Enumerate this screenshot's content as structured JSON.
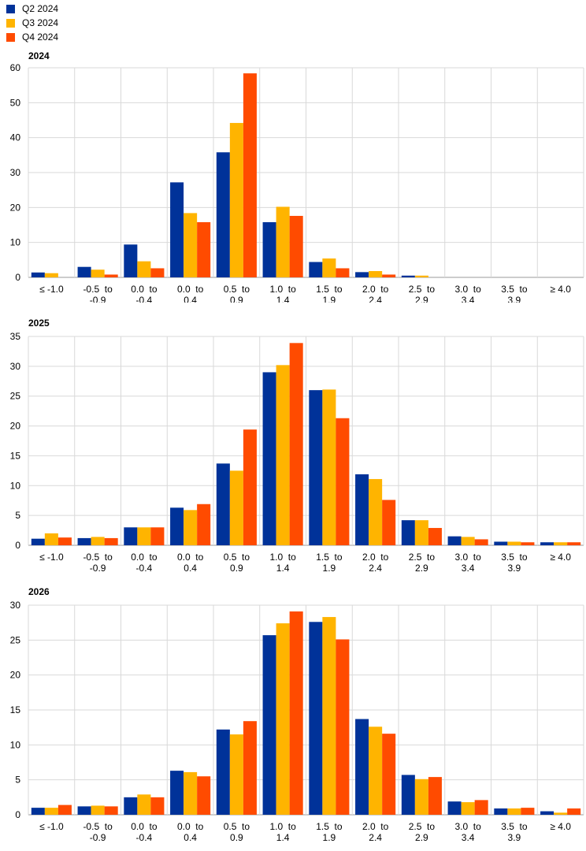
{
  "legend": [
    {
      "name": "Q2 2024",
      "color": "#003299"
    },
    {
      "name": "Q3 2024",
      "color": "#FFB400"
    },
    {
      "name": "Q4 2024",
      "color": "#FF4B00"
    }
  ],
  "chart_data": [
    {
      "type": "bar",
      "title": "2024",
      "categories": [
        [
          "≤ -1.0"
        ],
        [
          "-0.5  to",
          "-0.9"
        ],
        [
          "0.0  to",
          "-0.4"
        ],
        [
          "0.0  to",
          "0.4"
        ],
        [
          "0.5  to",
          "0.9"
        ],
        [
          "1.0  to",
          "1.4"
        ],
        [
          "1.5  to",
          "1.9"
        ],
        [
          "2.0  to",
          "2.4"
        ],
        [
          "2.5  to",
          "2.9"
        ],
        [
          "3.0  to",
          "3.4"
        ],
        [
          "3.5  to",
          "3.9"
        ],
        [
          "≥ 4.0"
        ]
      ],
      "ylim": [
        0,
        60
      ],
      "yticks": [
        0,
        10,
        20,
        30,
        40,
        50,
        60
      ],
      "grid": true,
      "series": [
        {
          "name": "Q2 2024",
          "values": [
            1.4,
            3.0,
            9.4,
            27.2,
            35.8,
            15.8,
            4.4,
            1.5,
            0.5,
            0,
            0,
            0
          ]
        },
        {
          "name": "Q3 2024",
          "values": [
            1.2,
            2.2,
            4.6,
            18.4,
            44.2,
            20.2,
            5.4,
            1.8,
            0.5,
            0,
            0,
            0
          ]
        },
        {
          "name": "Q4 2024",
          "values": [
            0,
            0.8,
            2.6,
            15.8,
            58.4,
            17.6,
            2.6,
            0.8,
            0,
            0,
            0,
            0
          ]
        }
      ]
    },
    {
      "type": "bar",
      "title": "2025",
      "categories": [
        [
          "≤ -1.0"
        ],
        [
          "-0.5  to",
          "-0.9"
        ],
        [
          "0.0  to",
          "-0.4"
        ],
        [
          "0.0  to",
          "0.4"
        ],
        [
          "0.5  to",
          "0.9"
        ],
        [
          "1.0  to",
          "1.4"
        ],
        [
          "1.5  to",
          "1.9"
        ],
        [
          "2.0  to",
          "2.4"
        ],
        [
          "2.5  to",
          "2.9"
        ],
        [
          "3.0  to",
          "3.4"
        ],
        [
          "3.5  to",
          "3.9"
        ],
        [
          "≥ 4.0"
        ]
      ],
      "ylim": [
        0,
        35
      ],
      "yticks": [
        0,
        5,
        10,
        15,
        20,
        25,
        30,
        35
      ],
      "grid": true,
      "series": [
        {
          "name": "Q2 2024",
          "values": [
            1.1,
            1.2,
            3.0,
            6.3,
            13.7,
            29.0,
            26.0,
            11.9,
            4.2,
            1.5,
            0.6,
            0.5
          ]
        },
        {
          "name": "Q3 2024",
          "values": [
            2.0,
            1.4,
            3.0,
            5.9,
            12.5,
            30.2,
            26.1,
            11.1,
            4.2,
            1.4,
            0.6,
            0.5
          ]
        },
        {
          "name": "Q4 2024",
          "values": [
            1.3,
            1.2,
            3.0,
            6.9,
            19.4,
            33.9,
            21.3,
            7.6,
            2.9,
            1.0,
            0.5,
            0.5
          ]
        }
      ]
    },
    {
      "type": "bar",
      "title": "2026",
      "categories": [
        [
          "≤ -1.0"
        ],
        [
          "-0.5  to",
          "-0.9"
        ],
        [
          "0.0  to",
          "-0.4"
        ],
        [
          "0.0  to",
          "0.4"
        ],
        [
          "0.5  to",
          "0.9"
        ],
        [
          "1.0  to",
          "1.4"
        ],
        [
          "1.5  to",
          "1.9"
        ],
        [
          "2.0  to",
          "2.4"
        ],
        [
          "2.5  to",
          "2.9"
        ],
        [
          "3.0  to",
          "3.4"
        ],
        [
          "3.5  to",
          "3.9"
        ],
        [
          "≥ 4.0"
        ]
      ],
      "ylim": [
        0,
        30
      ],
      "yticks": [
        0,
        5,
        10,
        15,
        20,
        25,
        30
      ],
      "grid": true,
      "series": [
        {
          "name": "Q2 2024",
          "values": [
            1.0,
            1.2,
            2.5,
            6.3,
            12.2,
            25.7,
            27.6,
            13.7,
            5.7,
            1.9,
            0.9,
            0.5
          ]
        },
        {
          "name": "Q3 2024",
          "values": [
            1.0,
            1.3,
            2.9,
            6.1,
            11.5,
            27.4,
            28.3,
            12.6,
            5.1,
            1.8,
            0.9,
            0.3
          ]
        },
        {
          "name": "Q4 2024",
          "values": [
            1.4,
            1.2,
            2.5,
            5.5,
            13.4,
            29.1,
            25.1,
            11.6,
            5.4,
            2.1,
            1.0,
            0.9
          ]
        }
      ]
    }
  ]
}
